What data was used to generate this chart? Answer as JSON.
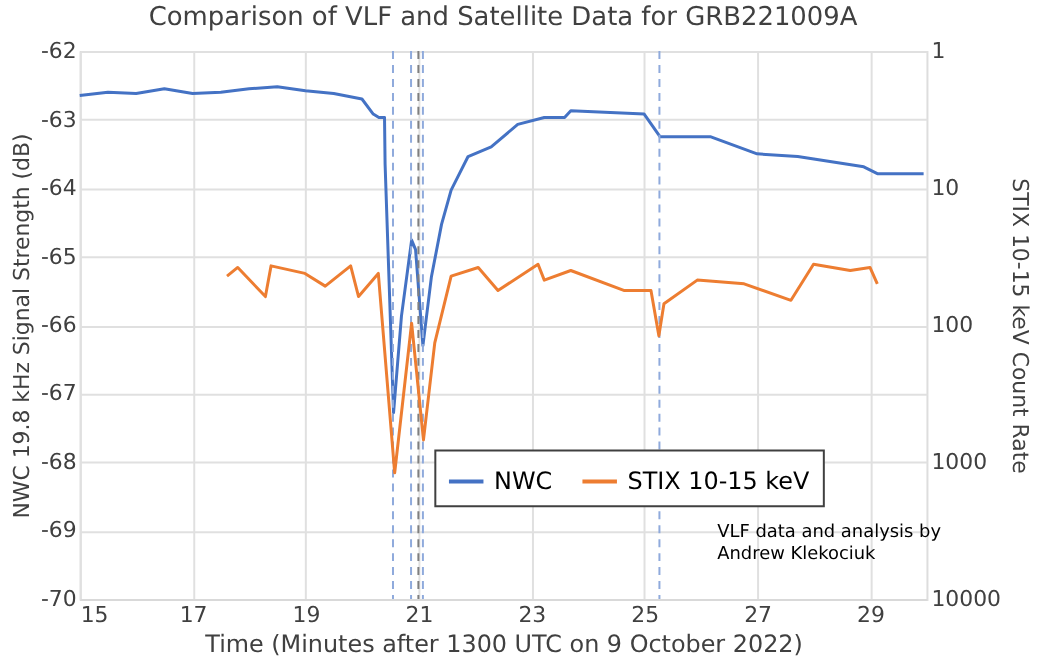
{
  "chart_data": {
    "type": "line",
    "title": "Comparison of VLF and Satellite Data for GRB221009A",
    "xlabel": "Time (Minutes after 1300 UTC on 9 October 2022)",
    "ylabel": "NWC 19.8 kHz Signal Strength (dB)",
    "y2label": "STIX 10-15 keV Count Rate",
    "xlim": [
      15,
      30
    ],
    "xticks": [
      15,
      17,
      19,
      21,
      23,
      25,
      27,
      29
    ],
    "ylim": [
      -70,
      -62
    ],
    "yticks": [
      -70,
      -69,
      -68,
      -67,
      -66,
      -65,
      -64,
      -63,
      -62
    ],
    "y2lim": [
      10000,
      1
    ],
    "y2ticks": [
      1,
      10,
      100,
      1000,
      10000
    ],
    "log": "y2",
    "grid": true,
    "legend": "right",
    "marker": "none",
    "line_style": "solid",
    "series": [
      {
        "name": "NWC",
        "color": "#4472c4",
        "x": [
          15,
          15.5,
          16,
          16.5,
          17,
          17.5,
          18,
          18.5,
          19,
          19.5,
          20,
          20.2,
          20.3,
          20.4,
          20.41,
          20.56,
          20.7,
          20.88,
          20.95,
          21.08,
          21.23,
          21.41,
          21.58,
          21.88,
          22.29,
          22.76,
          23.23,
          23.59,
          23.7,
          25.0,
          25.28,
          26.17,
          27.0,
          27.72,
          28.89,
          29.13,
          29.95
        ],
        "values": [
          -62.65,
          -62.6,
          -62.62,
          -62.55,
          -62.62,
          -62.6,
          -62.55,
          -62.52,
          -62.58,
          -62.62,
          -62.7,
          -62.92,
          -62.97,
          -62.97,
          -63.65,
          -67.28,
          -65.87,
          -64.76,
          -64.9,
          -66.3,
          -65.3,
          -64.53,
          -64.03,
          -63.54,
          -63.4,
          -63.07,
          -62.97,
          -62.97,
          -62.87,
          -62.92,
          -63.25,
          -63.25,
          -63.5,
          -63.54,
          -63.69,
          -63.79,
          -63.79
        ]
      },
      {
        "name": "STIX 10-15 keV",
        "color": "#ed7d31",
        "axis": "y2",
        "x": [
          17.61,
          17.8,
          18.29,
          18.39,
          18.99,
          19.35,
          19.8,
          19.94,
          20.29,
          20.58,
          20.88,
          21.09,
          21.29,
          21.58,
          22.06,
          22.41,
          23.12,
          23.23,
          23.7,
          24.65,
          25.12,
          25.26,
          25.35,
          25.94,
          26.77,
          27.6,
          28.0,
          28.65,
          29.0,
          29.13
        ],
        "values": [
          44,
          38,
          62,
          37,
          42,
          52,
          37,
          62,
          42,
          1200,
          97,
          690,
          135,
          44,
          38,
          56,
          36,
          47,
          40,
          56,
          56,
          120,
          70,
          47,
          50,
          66,
          36,
          40,
          38,
          50
        ]
      }
    ],
    "ref_lines": [
      {
        "axis": "x",
        "value": 20.55,
        "color": "#8faadc",
        "line_style": "dashed"
      },
      {
        "axis": "x",
        "value": 20.87,
        "color": "#8faadc",
        "line_style": "dashed"
      },
      {
        "axis": "x",
        "value": 21.0,
        "color": "#7f7f7f",
        "line_style": "dashed"
      },
      {
        "axis": "x",
        "value": 21.08,
        "color": "#8faadc",
        "line_style": "dashed"
      },
      {
        "axis": "x",
        "value": 25.27,
        "color": "#8faadc",
        "line_style": "dashed"
      }
    ],
    "annotations": [
      "VLF data and analysis by\nAndrew Klekociuk"
    ]
  }
}
